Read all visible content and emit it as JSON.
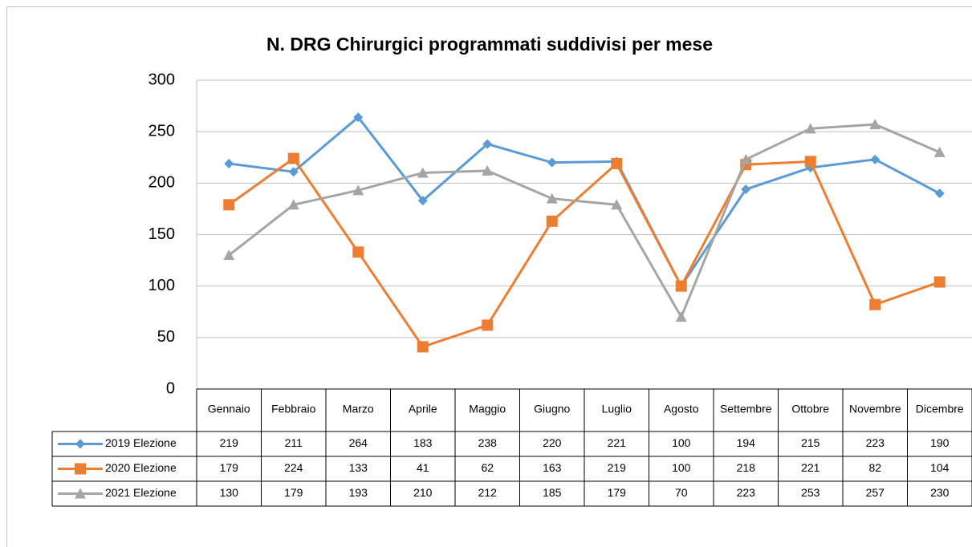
{
  "chart_data": {
    "type": "line",
    "title": "N. DRG Chirurgici programmati suddivisi per mese",
    "categories": [
      "Gennaio",
      "Febbraio",
      "Marzo",
      "Aprile",
      "Maggio",
      "Giugno",
      "Luglio",
      "Agosto",
      "Settembre",
      "Ottobre",
      "Novembre",
      "Dicembre"
    ],
    "series": [
      {
        "name": "2019 Elezione",
        "color": "#5b9bd5",
        "marker": "diamond",
        "values": [
          219,
          211,
          264,
          183,
          238,
          220,
          221,
          100,
          194,
          215,
          223,
          190
        ]
      },
      {
        "name": "2020 Elezione",
        "color": "#ed7d31",
        "marker": "square",
        "values": [
          179,
          224,
          133,
          41,
          62,
          163,
          219,
          100,
          218,
          221,
          82,
          104
        ]
      },
      {
        "name": "2021 Elezione",
        "color": "#a5a5a5",
        "marker": "triangle",
        "values": [
          130,
          179,
          193,
          210,
          212,
          185,
          179,
          70,
          223,
          253,
          257,
          230
        ]
      }
    ],
    "ylim": [
      0,
      300
    ],
    "yticks": [
      0,
      50,
      100,
      150,
      200,
      250,
      300
    ],
    "grid": true,
    "data_table": true
  }
}
